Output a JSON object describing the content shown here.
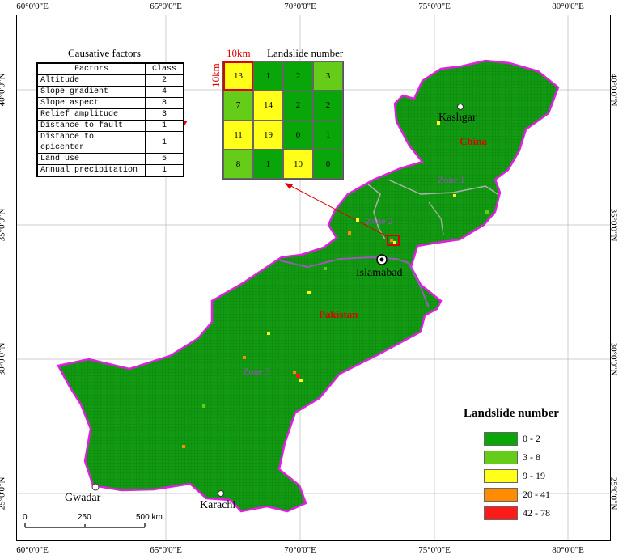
{
  "axes": {
    "lon_ticks": [
      "60°0'0\"E",
      "65°0'0\"E",
      "70°0'0\"E",
      "75°0'0\"E",
      "80°0'0\"E"
    ],
    "lat_ticks": [
      "40°0'0\"N",
      "35°0'0\"N",
      "30°0'0\"N",
      "25°0'0\"N"
    ]
  },
  "causative": {
    "title": "Causative factors",
    "header_factor": "Factors",
    "header_class": "Class",
    "rows": [
      {
        "factor": "Altitude",
        "class": "2"
      },
      {
        "factor": "Slope gradient",
        "class": "4"
      },
      {
        "factor": "Slope aspect",
        "class": "8"
      },
      {
        "factor": "Relief amplitude",
        "class": "3"
      },
      {
        "factor": "Distance to fault",
        "class": "1"
      },
      {
        "factor": "Distance to epicenter",
        "class": "1"
      },
      {
        "factor": "Land use",
        "class": "5"
      },
      {
        "factor": "Annual precipitation",
        "class": "1"
      }
    ]
  },
  "inset": {
    "title": "Landslide number",
    "cell_size_label": "10km",
    "cells": [
      {
        "v": "13",
        "color": "#ffff1a"
      },
      {
        "v": "1",
        "color": "#08a608"
      },
      {
        "v": "2",
        "color": "#08a608"
      },
      {
        "v": "3",
        "color": "#66cc1a"
      },
      {
        "v": "7",
        "color": "#66cc1a"
      },
      {
        "v": "14",
        "color": "#ffff1a"
      },
      {
        "v": "2",
        "color": "#08a608"
      },
      {
        "v": "2",
        "color": "#08a608"
      },
      {
        "v": "11",
        "color": "#ffff1a"
      },
      {
        "v": "19",
        "color": "#ffff1a"
      },
      {
        "v": "0",
        "color": "#08a608"
      },
      {
        "v": "1",
        "color": "#08a608"
      },
      {
        "v": "8",
        "color": "#66cc1a"
      },
      {
        "v": "1",
        "color": "#08a608"
      },
      {
        "v": "10",
        "color": "#ffff1a"
      },
      {
        "v": "0",
        "color": "#08a608"
      }
    ]
  },
  "places": {
    "kashgar": "Kashgar",
    "china": "China",
    "islamabad": "Islamabad",
    "pakistan": "Pakistan",
    "gwadar": "Gwadar",
    "karachi": "Karachi",
    "zone1": "Zone 1",
    "zone2": "Zone 2",
    "zone3": "Zone 3"
  },
  "legend": {
    "title": "Landslide number",
    "items": [
      {
        "label": "0 - 2",
        "color": "#08a608"
      },
      {
        "label": "3 - 8",
        "color": "#66cc1a"
      },
      {
        "label": "9 - 19",
        "color": "#ffff1a"
      },
      {
        "label": "20 - 41",
        "color": "#ff8c00"
      },
      {
        "label": "42 - 78",
        "color": "#ff1a1a"
      }
    ]
  },
  "scale": {
    "labels": [
      "0",
      "250",
      "500 km"
    ]
  }
}
